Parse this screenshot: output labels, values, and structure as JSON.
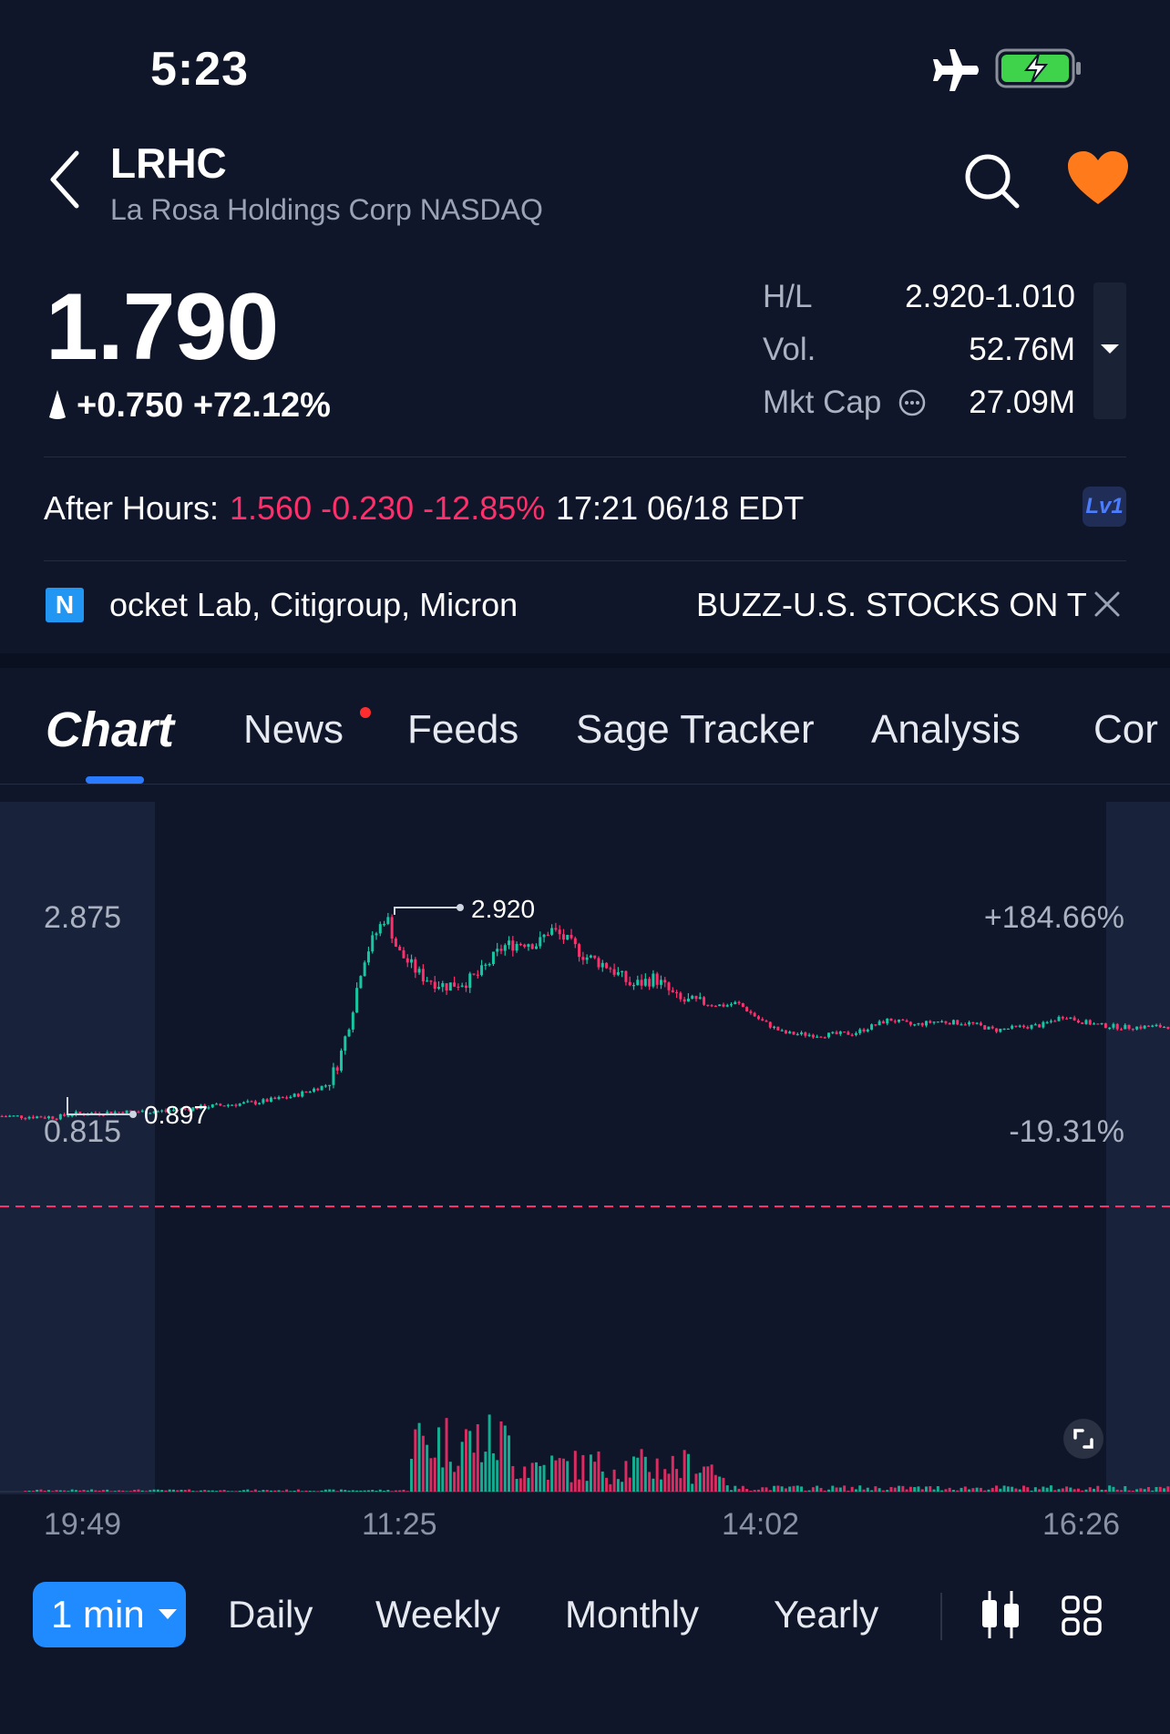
{
  "status": {
    "time": "5:23"
  },
  "header": {
    "ticker": "LRHC",
    "company": "La Rosa Holdings Corp NASDAQ"
  },
  "quote": {
    "price": "1.790",
    "change": "+0.750 +72.12%",
    "stats": [
      {
        "label": "H/L",
        "value": "2.920-1.010"
      },
      {
        "label": "Vol.",
        "value": "52.76M"
      },
      {
        "label": "Mkt Cap",
        "value": "27.09M"
      }
    ]
  },
  "after_hours": {
    "label": "After Hours:",
    "values": "1.560 -0.230 -12.85%",
    "time": "17:21 06/18 EDT",
    "level": "Lv1"
  },
  "news_ticker": {
    "icon_letter": "N",
    "text1": "ocket Lab, Citigroup, Micron",
    "text2": "BUZZ-U.S. STOCKS ON T"
  },
  "tabs": [
    {
      "label": "Chart"
    },
    {
      "label": "News"
    },
    {
      "label": "Feeds"
    },
    {
      "label": "Sage Tracker"
    },
    {
      "label": "Analysis"
    },
    {
      "label": "Cor"
    }
  ],
  "chart_data": {
    "type": "candlestick",
    "y_max_label": "2.875",
    "y_min_label": "0.815",
    "pct_max_label": "+184.66%",
    "pct_min_label": "-19.31%",
    "high_marker": "2.920",
    "low_marker": "0.897",
    "prev_close_line": true,
    "x_labels": [
      "19:49",
      "11:25",
      "14:02",
      "16:26"
    ],
    "ylim": [
      0.815,
      2.875
    ],
    "price_path": [
      [
        0.0,
        0.88
      ],
      [
        0.05,
        0.87
      ],
      [
        0.06,
        0.9
      ],
      [
        0.1,
        0.92
      ],
      [
        0.14,
        0.93
      ],
      [
        0.18,
        0.98
      ],
      [
        0.22,
        1.02
      ],
      [
        0.25,
        1.08
      ],
      [
        0.28,
        1.2
      ],
      [
        0.29,
        1.45
      ],
      [
        0.3,
        1.9
      ],
      [
        0.31,
        2.45
      ],
      [
        0.32,
        2.7
      ],
      [
        0.33,
        2.92
      ],
      [
        0.34,
        2.55
      ],
      [
        0.36,
        2.3
      ],
      [
        0.38,
        2.2
      ],
      [
        0.4,
        2.25
      ],
      [
        0.41,
        2.32
      ],
      [
        0.43,
        2.6
      ],
      [
        0.45,
        2.65
      ],
      [
        0.46,
        2.62
      ],
      [
        0.47,
        2.78
      ],
      [
        0.48,
        2.7
      ],
      [
        0.5,
        2.5
      ],
      [
        0.52,
        2.4
      ],
      [
        0.54,
        2.2
      ],
      [
        0.56,
        2.28
      ],
      [
        0.58,
        2.05
      ],
      [
        0.6,
        2.02
      ],
      [
        0.62,
        2.0
      ],
      [
        0.63,
        2.03
      ],
      [
        0.65,
        1.85
      ],
      [
        0.67,
        1.72
      ],
      [
        0.7,
        1.7
      ],
      [
        0.73,
        1.72
      ],
      [
        0.76,
        1.86
      ],
      [
        0.78,
        1.8
      ],
      [
        0.8,
        1.84
      ],
      [
        0.83,
        1.82
      ],
      [
        0.85,
        1.75
      ],
      [
        0.87,
        1.78
      ],
      [
        0.89,
        1.8
      ],
      [
        0.91,
        1.9
      ],
      [
        0.92,
        1.85
      ],
      [
        0.94,
        1.8
      ],
      [
        0.96,
        1.78
      ],
      [
        1.0,
        1.79
      ]
    ]
  },
  "periods": {
    "active": "1 min",
    "items": [
      "Daily",
      "Weekly",
      "Monthly",
      "Yearly"
    ]
  },
  "colors": {
    "up": "#17c7a4",
    "down": "#ff2f6b",
    "accent": "#1f8bff",
    "heart": "#ff7a1a",
    "battery": "#3ed34a"
  },
  "icons": [
    "airplane-icon",
    "battery-icon",
    "back-icon",
    "search-icon",
    "heart-icon",
    "info-icon",
    "close-icon",
    "expand-icon",
    "candlestick-icon",
    "grid-icon"
  ]
}
